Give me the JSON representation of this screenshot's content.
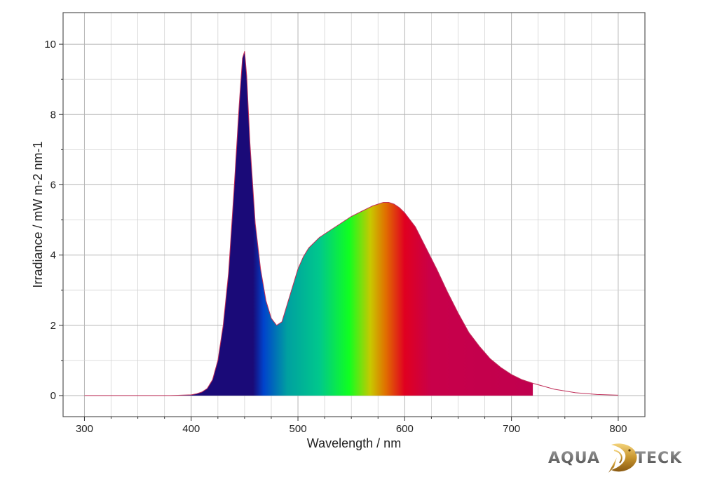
{
  "chart_data": {
    "type": "area",
    "title": "",
    "xlabel": "Wavelength / nm",
    "ylabel": "Irradiance / mW m-2 nm-1",
    "xlim": [
      280,
      825
    ],
    "ylim": [
      -0.6,
      10.9
    ],
    "x_ticks": [
      300,
      400,
      500,
      600,
      700,
      800
    ],
    "y_ticks": [
      0,
      2,
      4,
      6,
      8,
      10
    ],
    "grid": true,
    "legend": "none",
    "fill_end_wavelength": 720,
    "series": [
      {
        "x": [
          300,
          380,
          400,
          405,
          410,
          415,
          420,
          425,
          430,
          435,
          440,
          445,
          448,
          450,
          452,
          455,
          460,
          465,
          470,
          475,
          480,
          485,
          490,
          495,
          500,
          505,
          510,
          515,
          520,
          530,
          540,
          550,
          560,
          570,
          580,
          585,
          590,
          595,
          600,
          610,
          620,
          630,
          640,
          650,
          660,
          670,
          680,
          690,
          700,
          710,
          720,
          740,
          760,
          780,
          800
        ],
        "y": [
          0,
          0,
          0.02,
          0.05,
          0.1,
          0.2,
          0.45,
          1.0,
          2.0,
          3.5,
          5.8,
          8.3,
          9.6,
          9.8,
          9.1,
          7.2,
          4.9,
          3.6,
          2.7,
          2.2,
          2.0,
          2.1,
          2.6,
          3.1,
          3.6,
          3.95,
          4.2,
          4.35,
          4.5,
          4.7,
          4.9,
          5.1,
          5.25,
          5.4,
          5.5,
          5.5,
          5.45,
          5.35,
          5.2,
          4.8,
          4.2,
          3.6,
          2.95,
          2.35,
          1.8,
          1.4,
          1.05,
          0.8,
          0.6,
          0.45,
          0.35,
          0.18,
          0.08,
          0.03,
          0.01
        ]
      }
    ]
  },
  "logo": {
    "text_left": "AQUA",
    "text_right": "TECK"
  }
}
